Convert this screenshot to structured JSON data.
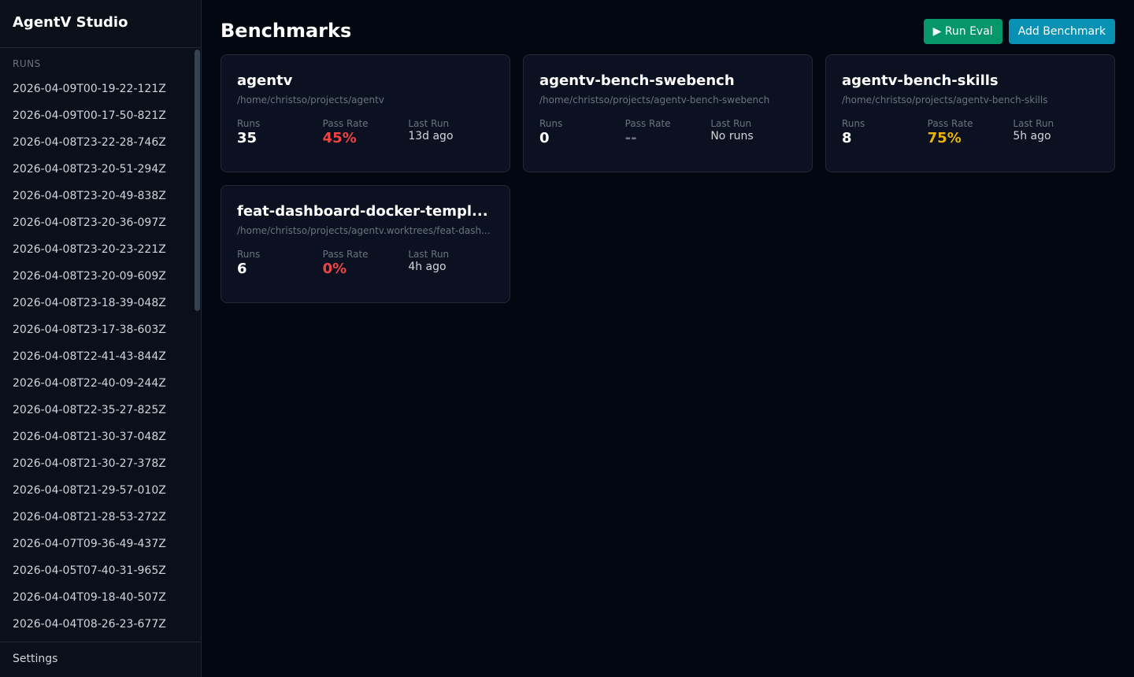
{
  "app": {
    "title": "AgentV Studio"
  },
  "sidebar": {
    "runs_label": "RUNS",
    "runs": [
      "2026-04-09T00-19-22-121Z",
      "2026-04-09T00-17-50-821Z",
      "2026-04-08T23-22-28-746Z",
      "2026-04-08T23-20-51-294Z",
      "2026-04-08T23-20-49-838Z",
      "2026-04-08T23-20-36-097Z",
      "2026-04-08T23-20-23-221Z",
      "2026-04-08T23-20-09-609Z",
      "2026-04-08T23-18-39-048Z",
      "2026-04-08T23-17-38-603Z",
      "2026-04-08T22-41-43-844Z",
      "2026-04-08T22-40-09-244Z",
      "2026-04-08T22-35-27-825Z",
      "2026-04-08T21-30-37-048Z",
      "2026-04-08T21-30-27-378Z",
      "2026-04-08T21-29-57-010Z",
      "2026-04-08T21-28-53-272Z",
      "2026-04-07T09-36-49-437Z",
      "2026-04-05T07-40-31-965Z",
      "2026-04-04T09-18-40-507Z",
      "2026-04-04T08-26-23-677Z"
    ],
    "settings_label": "Settings"
  },
  "header": {
    "title": "Benchmarks",
    "run_eval_label": "▶ Run Eval",
    "add_label": "Add Benchmark"
  },
  "labels": {
    "runs": "Runs",
    "pass_rate": "Pass Rate",
    "last_run": "Last Run"
  },
  "colors": {
    "fail": "#ef4444",
    "warn": "#eab308",
    "none": "#6b7280"
  },
  "benchmarks": [
    {
      "name": "agentv",
      "path": "/home/christso/projects/agentv",
      "runs": "35",
      "pass_rate": "45%",
      "pass_color": "#ef4444",
      "last_run": "13d ago"
    },
    {
      "name": "agentv-bench-swebench",
      "path": "/home/christso/projects/agentv-bench-swebench",
      "runs": "0",
      "pass_rate": "--",
      "pass_color": "#6b7280",
      "last_run": "No runs"
    },
    {
      "name": "agentv-bench-skills",
      "path": "/home/christso/projects/agentv-bench-skills",
      "runs": "8",
      "pass_rate": "75%",
      "pass_color": "#eab308",
      "last_run": "5h ago"
    },
    {
      "name": "feat-dashboard-docker-templ...",
      "path": "/home/christso/projects/agentv.worktrees/feat-dash...",
      "runs": "6",
      "pass_rate": "0%",
      "pass_color": "#ef4444",
      "last_run": "4h ago"
    }
  ]
}
